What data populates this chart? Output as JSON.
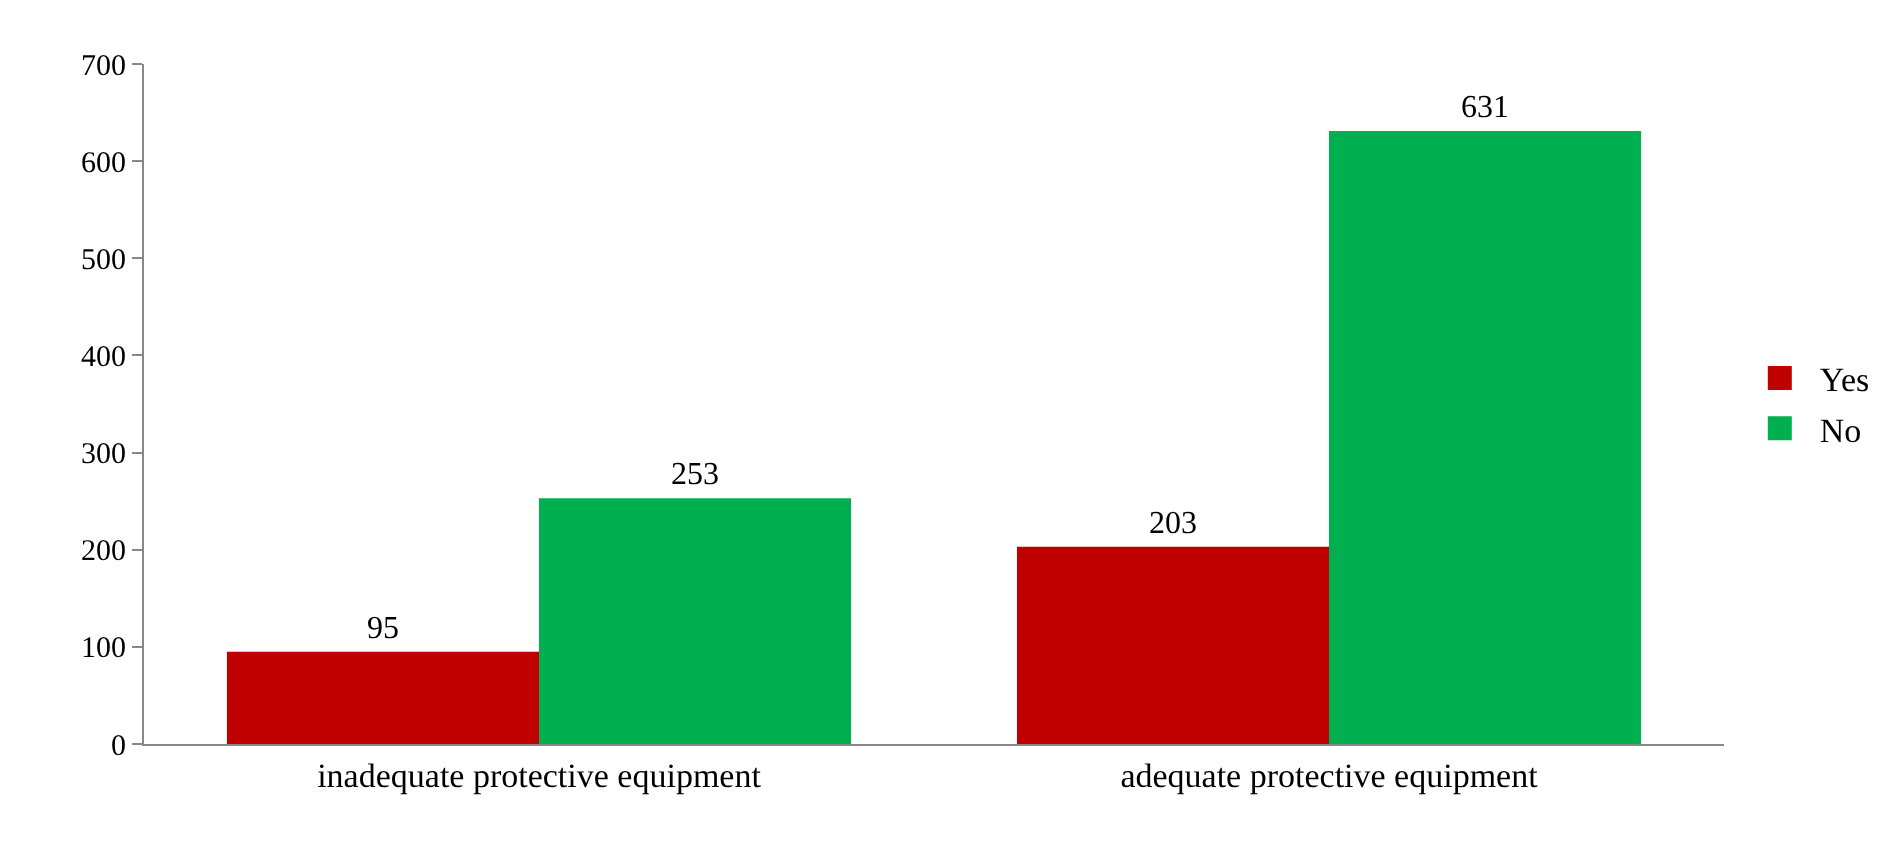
{
  "chart_data": {
    "type": "bar",
    "categories": [
      "inadequate protective equipment",
      "adequate protective equipment"
    ],
    "series": [
      {
        "name": "Yes",
        "color": "#c00000",
        "values": [
          95,
          203
        ]
      },
      {
        "name": "No",
        "color": "#00b050",
        "values": [
          253,
          631
        ]
      }
    ],
    "ylim": [
      0,
      700
    ],
    "yticks": [
      0,
      100,
      200,
      300,
      400,
      500,
      600,
      700
    ],
    "data_labels": true,
    "legend": "right"
  }
}
